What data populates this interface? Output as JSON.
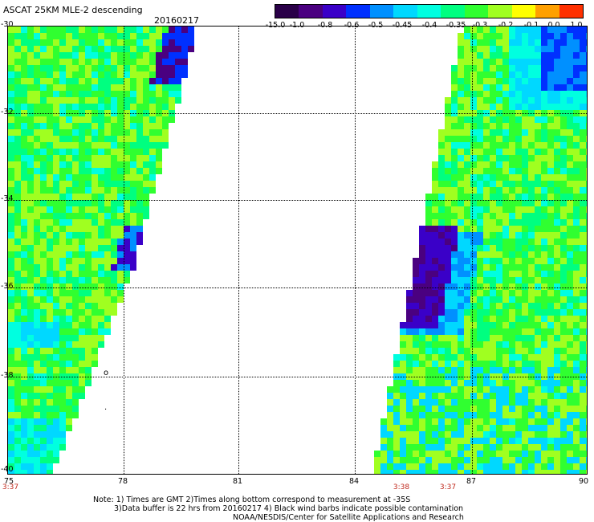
{
  "title": "ASCAT 25KM MLE-2 descending",
  "date": "20160217",
  "colorbar": {
    "labels": [
      "-15.0",
      "-1.0",
      "-0.8",
      "-0.6",
      "-0.5",
      "-0.45",
      "-0.4",
      "-0.35",
      "-0.3",
      "-0.2",
      "-0.1",
      "0.0",
      "1.0"
    ],
    "colors": [
      "#2a0048",
      "#4a0080",
      "#3a00c8",
      "#0030ff",
      "#0090ff",
      "#00d8ff",
      "#00ffe0",
      "#00ff80",
      "#30ff30",
      "#a0ff20",
      "#ffff00",
      "#ffa000",
      "#ff3000"
    ]
  },
  "map": {
    "lat_labels": [
      "-30",
      "-32",
      "-34",
      "-36",
      "-38",
      "-40"
    ],
    "lon_labels": [
      "75",
      "78",
      "81",
      "84",
      "87",
      "90"
    ],
    "left_swath_start_time": "3:37",
    "right_swath_times": [
      "3:38",
      "3:37"
    ]
  },
  "notes": {
    "line1": "Note: 1) Times are GMT 2)Times along bottom correspond to measurement at -35S",
    "line2": "3)Data buffer is 22 hrs from 20160217 4) Black wind barbs indicate possible contamination",
    "line3": "NOAA/NESDIS/Center for Satellite Applications and Research"
  }
}
